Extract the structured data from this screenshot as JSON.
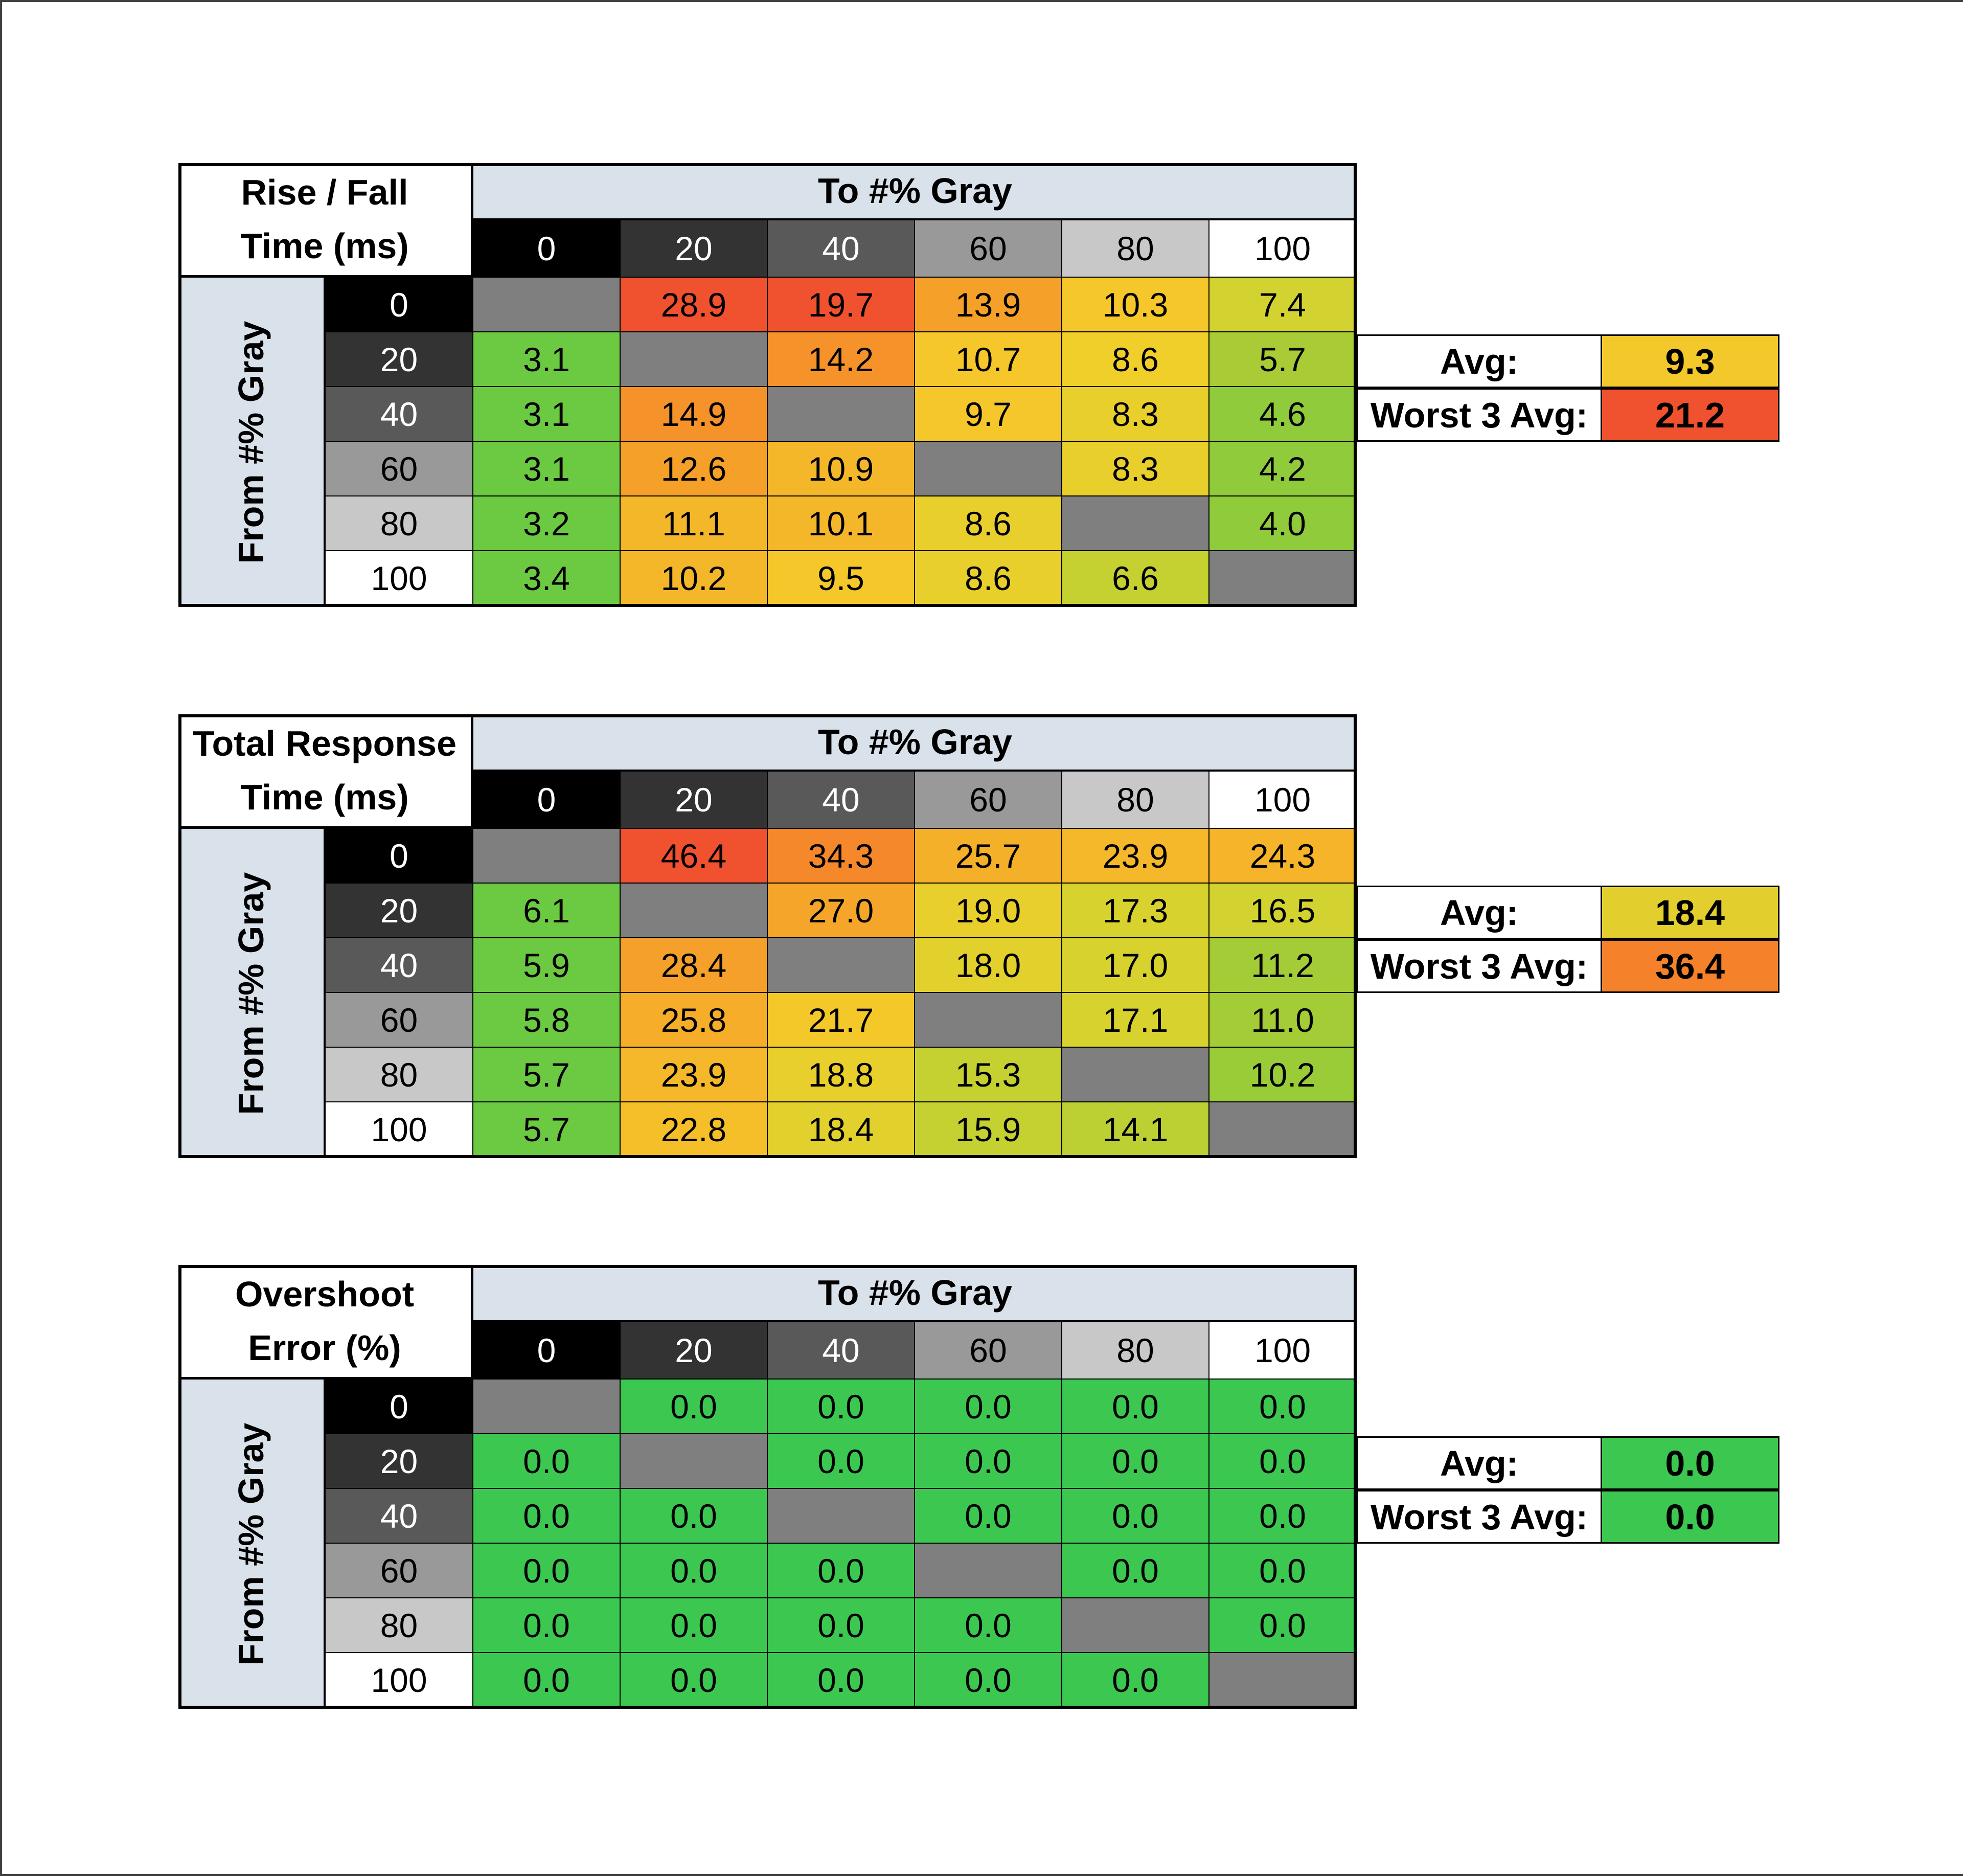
{
  "chart_data": [
    {
      "type": "heatmap",
      "title_lines": [
        "Rise / Fall",
        "Time (ms)"
      ],
      "column_header": "To #% Gray",
      "row_header": "From #% Gray",
      "categories": [
        "0",
        "20",
        "40",
        "60",
        "80",
        "100"
      ],
      "values": [
        [
          null,
          28.9,
          19.7,
          13.9,
          10.3,
          7.4
        ],
        [
          3.1,
          null,
          14.2,
          10.7,
          8.6,
          5.7
        ],
        [
          3.1,
          14.9,
          null,
          9.7,
          8.3,
          4.6
        ],
        [
          3.1,
          12.6,
          10.9,
          null,
          8.3,
          4.2
        ],
        [
          3.2,
          11.1,
          10.1,
          8.6,
          null,
          4.0
        ],
        [
          3.4,
          10.2,
          9.5,
          8.6,
          6.6,
          null
        ]
      ],
      "cell_text": [
        [
          "",
          "28.9",
          "19.7",
          "13.9",
          "10.3",
          "7.4"
        ],
        [
          "3.1",
          "",
          "14.2",
          "10.7",
          "8.6",
          "5.7"
        ],
        [
          "3.1",
          "14.9",
          "",
          "9.7",
          "8.3",
          "4.6"
        ],
        [
          "3.1",
          "12.6",
          "10.9",
          "",
          "8.3",
          "4.2"
        ],
        [
          "3.2",
          "11.1",
          "10.1",
          "8.6",
          "",
          "4.0"
        ],
        [
          "3.4",
          "10.2",
          "9.5",
          "8.6",
          "6.6",
          ""
        ]
      ],
      "cell_colors": [
        [
          "#7f7f7f",
          "#f0512e",
          "#f0512e",
          "#f5a029",
          "#f5c72a",
          "#d2d231"
        ],
        [
          "#6cc942",
          "#7f7f7f",
          "#f5922a",
          "#f5c72a",
          "#f0cf2a",
          "#a9cc36"
        ],
        [
          "#6cc942",
          "#f5922a",
          "#7f7f7f",
          "#f5c72a",
          "#e8cf2c",
          "#8fcb3a"
        ],
        [
          "#6cc942",
          "#f5a029",
          "#f5b72a",
          "#7f7f7f",
          "#e8cf2c",
          "#8fcb3a"
        ],
        [
          "#6cc942",
          "#f5b72a",
          "#f5b72a",
          "#e8cf2c",
          "#7f7f7f",
          "#8fcb3a"
        ],
        [
          "#6cc942",
          "#f5b72a",
          "#f5c72a",
          "#e8cf2c",
          "#c5d031",
          "#7f7f7f"
        ]
      ],
      "stats": [
        {
          "label": "Avg:",
          "value": "9.3",
          "color": "#f2c82a"
        },
        {
          "label": "Worst 3 Avg:",
          "value": "21.2",
          "color": "#f0512e"
        }
      ]
    },
    {
      "type": "heatmap",
      "title_lines": [
        "Total Response",
        "Time (ms)"
      ],
      "column_header": "To #% Gray",
      "row_header": "From #% Gray",
      "categories": [
        "0",
        "20",
        "40",
        "60",
        "80",
        "100"
      ],
      "values": [
        [
          null,
          46.4,
          34.3,
          25.7,
          23.9,
          24.3
        ],
        [
          6.1,
          null,
          27.0,
          19.0,
          17.3,
          16.5
        ],
        [
          5.9,
          28.4,
          null,
          18.0,
          17.0,
          11.2
        ],
        [
          5.8,
          25.8,
          21.7,
          null,
          17.1,
          11.0
        ],
        [
          5.7,
          23.9,
          18.8,
          15.3,
          null,
          10.2
        ],
        [
          5.7,
          22.8,
          18.4,
          15.9,
          14.1,
          null
        ]
      ],
      "cell_text": [
        [
          "",
          "46.4",
          "34.3",
          "25.7",
          "23.9",
          "24.3"
        ],
        [
          "6.1",
          "",
          "27.0",
          "19.0",
          "17.3",
          "16.5"
        ],
        [
          "5.9",
          "28.4",
          "",
          "18.0",
          "17.0",
          "11.2"
        ],
        [
          "5.8",
          "25.8",
          "21.7",
          "",
          "17.1",
          "11.0"
        ],
        [
          "5.7",
          "23.9",
          "18.8",
          "15.3",
          "",
          "10.2"
        ],
        [
          "5.7",
          "22.8",
          "18.4",
          "15.9",
          "14.1",
          ""
        ]
      ],
      "cell_colors": [
        [
          "#7f7f7f",
          "#f0512e",
          "#f5882b",
          "#f5b02a",
          "#f5b82a",
          "#f5b42a"
        ],
        [
          "#6cc942",
          "#7f7f7f",
          "#f5a52a",
          "#e8cf2c",
          "#d8d22f",
          "#d2d231"
        ],
        [
          "#6cc942",
          "#f5a02a",
          "#7f7f7f",
          "#e2d02d",
          "#d8d22f",
          "#a3cc37"
        ],
        [
          "#6cc942",
          "#f5ad2a",
          "#f5c82a",
          "#7f7f7f",
          "#d8d22f",
          "#a3cc37"
        ],
        [
          "#6cc942",
          "#f5b82a",
          "#e8cf2c",
          "#c5d031",
          "#7f7f7f",
          "#9acc38"
        ],
        [
          "#6cc942",
          "#f5bf2a",
          "#e2d02d",
          "#c5d031",
          "#bccf33",
          "#7f7f7f"
        ]
      ],
      "stats": [
        {
          "label": "Avg:",
          "value": "18.4",
          "color": "#e2cf2d"
        },
        {
          "label": "Worst 3 Avg:",
          "value": "36.4",
          "color": "#f5822b"
        }
      ]
    },
    {
      "type": "heatmap",
      "title_lines": [
        "Overshoot",
        "Error (%)"
      ],
      "column_header": "To #% Gray",
      "row_header": "From #% Gray",
      "categories": [
        "0",
        "20",
        "40",
        "60",
        "80",
        "100"
      ],
      "values": [
        [
          null,
          0.0,
          0.0,
          0.0,
          0.0,
          0.0
        ],
        [
          0.0,
          null,
          0.0,
          0.0,
          0.0,
          0.0
        ],
        [
          0.0,
          0.0,
          null,
          0.0,
          0.0,
          0.0
        ],
        [
          0.0,
          0.0,
          0.0,
          null,
          0.0,
          0.0
        ],
        [
          0.0,
          0.0,
          0.0,
          0.0,
          null,
          0.0
        ],
        [
          0.0,
          0.0,
          0.0,
          0.0,
          0.0,
          null
        ]
      ],
      "cell_text": [
        [
          "",
          "0.0",
          "0.0",
          "0.0",
          "0.0",
          "0.0"
        ],
        [
          "0.0",
          "",
          "0.0",
          "0.0",
          "0.0",
          "0.0"
        ],
        [
          "0.0",
          "0.0",
          "",
          "0.0",
          "0.0",
          "0.0"
        ],
        [
          "0.0",
          "0.0",
          "0.0",
          "",
          "0.0",
          "0.0"
        ],
        [
          "0.0",
          "0.0",
          "0.0",
          "0.0",
          "",
          "0.0"
        ],
        [
          "0.0",
          "0.0",
          "0.0",
          "0.0",
          "0.0",
          ""
        ]
      ],
      "cell_colors": [
        [
          "#7f7f7f",
          "#3cc850",
          "#3cc850",
          "#3cc850",
          "#3cc850",
          "#3cc850"
        ],
        [
          "#3cc850",
          "#7f7f7f",
          "#3cc850",
          "#3cc850",
          "#3cc850",
          "#3cc850"
        ],
        [
          "#3cc850",
          "#3cc850",
          "#7f7f7f",
          "#3cc850",
          "#3cc850",
          "#3cc850"
        ],
        [
          "#3cc850",
          "#3cc850",
          "#3cc850",
          "#7f7f7f",
          "#3cc850",
          "#3cc850"
        ],
        [
          "#3cc850",
          "#3cc850",
          "#3cc850",
          "#3cc850",
          "#7f7f7f",
          "#3cc850"
        ],
        [
          "#3cc850",
          "#3cc850",
          "#3cc850",
          "#3cc850",
          "#3cc850",
          "#7f7f7f"
        ]
      ],
      "stats": [
        {
          "label": "Avg:",
          "value": "0.0",
          "color": "#3cc850"
        },
        {
          "label": "Worst 3 Avg:",
          "value": "0.0",
          "color": "#3cc850"
        }
      ]
    }
  ],
  "gray_level_colors": {
    "0": "#000000",
    "20": "#333333",
    "40": "#595959",
    "60": "#999999",
    "80": "#c8c8c8",
    "100": "#ffffff"
  }
}
